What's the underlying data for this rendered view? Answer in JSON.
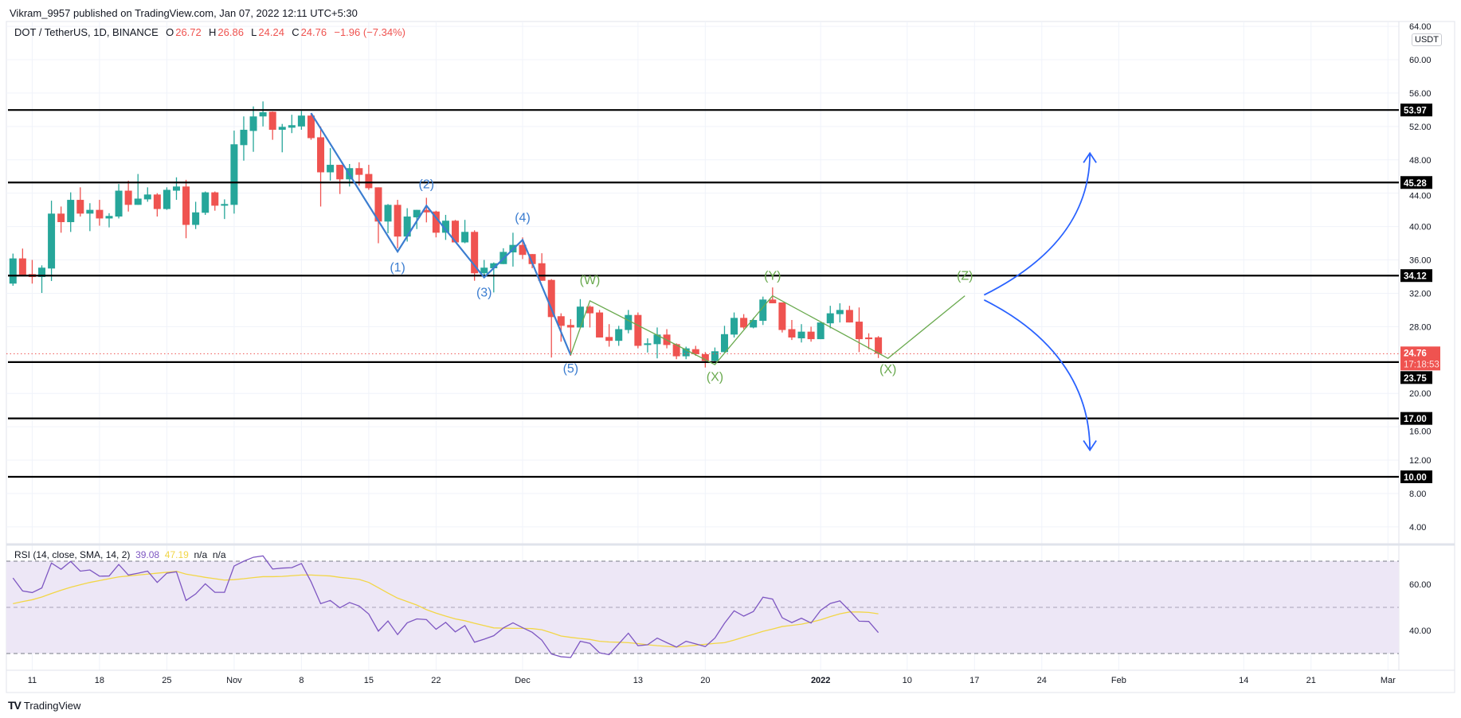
{
  "header": {
    "published": "Vikram_9957 published on TradingView.com, Jan 07, 2022 12:11 UTC+5:30"
  },
  "legend": {
    "symbol": "DOT / TetherUS, 1D, BINANCE",
    "open_label": "O",
    "open": "26.72",
    "high_label": "H",
    "high": "26.86",
    "low_label": "L",
    "low": "24.24",
    "close_label": "C",
    "close": "24.76",
    "change": "−1.96 (−7.34%)"
  },
  "currency_badge": "USDT",
  "rsi_legend": {
    "label": "RSI (14, close, SMA, 14, 2)",
    "rsi": "39.08",
    "sma": "47.19",
    "na1": "n/a",
    "na2": "n/a"
  },
  "logo": {
    "text": "TradingView",
    "mark": "TV"
  },
  "colors": {
    "up": "#26a69a",
    "down": "#ef5350",
    "rsi": "#7e57c2",
    "rsi_sma": "#f2d646",
    "wave_blue": "#3b7dd0",
    "wave_green": "#6aaa4f",
    "level": "#000000",
    "last_price": "#ef5350",
    "rsi_band": "#ede7f6"
  },
  "chart_data": {
    "type": "candlestick",
    "price_axis": {
      "range": [
        2,
        66
      ],
      "ticks": [
        "64.00",
        "60.00",
        "56.00",
        "52.00",
        "48.00",
        "44.00",
        "40.00",
        "36.00",
        "32.00",
        "28.00",
        "20.00",
        "16.00",
        "12.00",
        "8.00",
        "4.00"
      ],
      "tick_values": [
        64,
        60,
        56,
        52,
        48,
        44,
        40,
        36,
        32,
        28,
        20,
        16,
        12,
        8,
        4
      ]
    },
    "time_axis": {
      "ticks": [
        {
          "label": "11",
          "date": "2021-10-11"
        },
        {
          "label": "18",
          "date": "2021-10-18"
        },
        {
          "label": "25",
          "date": "2021-10-25"
        },
        {
          "label": "Nov",
          "date": "2021-11-01",
          "bold": true
        },
        {
          "label": "8",
          "date": "2021-11-08"
        },
        {
          "label": "15",
          "date": "2021-11-15"
        },
        {
          "label": "22",
          "date": "2021-11-22"
        },
        {
          "label": "Dec",
          "date": "2021-12-01",
          "bold": true
        },
        {
          "label": "13",
          "date": "2021-12-13"
        },
        {
          "label": "20",
          "date": "2021-12-20"
        },
        {
          "label": "2022",
          "date": "2022-01-01",
          "bold": true
        },
        {
          "label": "10",
          "date": "2022-01-10"
        },
        {
          "label": "17",
          "date": "2022-01-17"
        },
        {
          "label": "24",
          "date": "2022-01-24"
        },
        {
          "label": "Feb",
          "date": "2022-02-01",
          "bold": true
        },
        {
          "label": "14",
          "date": "2022-02-14"
        },
        {
          "label": "21",
          "date": "2022-02-21"
        },
        {
          "label": "Mar",
          "date": "2022-03-01",
          "bold": true
        }
      ]
    },
    "candles_format": [
      "date",
      "open",
      "high",
      "low",
      "close"
    ],
    "candles": [
      [
        "2021-10-09",
        33.16,
        36.76,
        32.9,
        36.18
      ],
      [
        "2021-10-10",
        36.18,
        37.36,
        34.08,
        34.21
      ],
      [
        "2021-10-11",
        34.3,
        36.0,
        33.16,
        33.95
      ],
      [
        "2021-10-12",
        33.95,
        35.35,
        32.04,
        35.07
      ],
      [
        "2021-10-13",
        34.97,
        43.1,
        33.47,
        41.55
      ],
      [
        "2021-10-14",
        41.55,
        42.4,
        39.26,
        40.53
      ],
      [
        "2021-10-15",
        40.53,
        44.1,
        39.35,
        43.2
      ],
      [
        "2021-10-16",
        43.2,
        44.7,
        41.2,
        41.55
      ],
      [
        "2021-10-17",
        41.55,
        42.8,
        39.45,
        42.0
      ],
      [
        "2021-10-18",
        42.0,
        43.2,
        40.1,
        40.97
      ],
      [
        "2021-10-19",
        40.97,
        41.6,
        39.9,
        41.27
      ],
      [
        "2021-10-20",
        41.2,
        45.1,
        40.97,
        44.3
      ],
      [
        "2021-10-21",
        44.3,
        45.5,
        41.8,
        42.6
      ],
      [
        "2021-10-22",
        42.6,
        46.3,
        42.6,
        43.35
      ],
      [
        "2021-10-23",
        43.26,
        44.7,
        42.97,
        43.84
      ],
      [
        "2021-10-24",
        43.84,
        44.0,
        41.2,
        42.1
      ],
      [
        "2021-10-25",
        42.1,
        44.7,
        42.0,
        44.4
      ],
      [
        "2021-10-26",
        44.3,
        45.9,
        43.2,
        44.8
      ],
      [
        "2021-10-27",
        44.8,
        45.6,
        38.6,
        40.2
      ],
      [
        "2021-10-28",
        40.2,
        42.97,
        39.7,
        41.7
      ],
      [
        "2021-10-29",
        41.65,
        44.2,
        41.4,
        44.1
      ],
      [
        "2021-10-30",
        44.1,
        44.2,
        41.9,
        42.5
      ],
      [
        "2021-10-31",
        42.5,
        43.26,
        40.9,
        42.7
      ],
      [
        "2021-11-01",
        42.6,
        51.5,
        41.55,
        49.86
      ],
      [
        "2021-11-02",
        49.76,
        53.2,
        47.9,
        51.6
      ],
      [
        "2021-11-03",
        51.46,
        54.4,
        48.96,
        53.2
      ],
      [
        "2021-11-04",
        53.2,
        55.0,
        52.0,
        53.7
      ],
      [
        "2021-11-05",
        53.76,
        53.8,
        50.4,
        51.6
      ],
      [
        "2021-11-06",
        51.6,
        52.3,
        48.9,
        51.95
      ],
      [
        "2021-11-07",
        51.85,
        53.4,
        51.2,
        52.15
      ],
      [
        "2021-11-08",
        52.0,
        53.85,
        51.6,
        53.3
      ],
      [
        "2021-11-09",
        53.3,
        53.5,
        50.4,
        50.6
      ],
      [
        "2021-11-10",
        50.7,
        52.0,
        42.4,
        46.5
      ],
      [
        "2021-11-11",
        46.5,
        49.4,
        45.5,
        47.4
      ],
      [
        "2021-11-12",
        47.4,
        47.4,
        43.9,
        45.66
      ],
      [
        "2021-11-13",
        45.66,
        47.5,
        44.8,
        47.0
      ],
      [
        "2021-11-14",
        47.0,
        47.7,
        44.9,
        46.2
      ],
      [
        "2021-11-15",
        46.3,
        47.4,
        44.4,
        44.6
      ],
      [
        "2021-11-16",
        44.7,
        44.7,
        38.0,
        40.6
      ],
      [
        "2021-11-17",
        40.6,
        42.7,
        39.2,
        42.6
      ],
      [
        "2021-11-18",
        42.6,
        43.2,
        37.4,
        38.8
      ],
      [
        "2021-11-19",
        38.8,
        42.2,
        38.2,
        41.2
      ],
      [
        "2021-11-20",
        41.1,
        42.0,
        39.7,
        42.0
      ],
      [
        "2021-11-21",
        42.0,
        43.45,
        40.5,
        41.7
      ],
      [
        "2021-11-22",
        41.8,
        41.9,
        38.7,
        39.26
      ],
      [
        "2021-11-23",
        39.26,
        41.4,
        38.4,
        40.7
      ],
      [
        "2021-11-24",
        40.7,
        40.8,
        38.1,
        38.1
      ],
      [
        "2021-11-25",
        38.1,
        40.8,
        38.0,
        39.36
      ],
      [
        "2021-11-26",
        39.36,
        39.55,
        33.5,
        34.4
      ],
      [
        "2021-11-27",
        34.4,
        36.0,
        34.0,
        35.07
      ],
      [
        "2021-11-28",
        35.0,
        35.7,
        32.1,
        35.6
      ],
      [
        "2021-11-29",
        35.5,
        37.4,
        35.5,
        36.96
      ],
      [
        "2021-11-30",
        36.9,
        39.26,
        35.2,
        37.8
      ],
      [
        "2021-12-01",
        37.8,
        38.7,
        36.1,
        36.6
      ],
      [
        "2021-12-02",
        36.7,
        36.7,
        35.0,
        35.5
      ],
      [
        "2021-12-03",
        35.6,
        36.8,
        33.5,
        33.5
      ],
      [
        "2021-12-04",
        33.6,
        33.7,
        24.3,
        29.15
      ],
      [
        "2021-12-05",
        29.25,
        29.6,
        26.2,
        28.1
      ],
      [
        "2021-12-06",
        28.2,
        28.9,
        24.5,
        27.9
      ],
      [
        "2021-12-07",
        27.9,
        31.3,
        27.9,
        30.4
      ],
      [
        "2021-12-08",
        30.4,
        30.55,
        27.9,
        29.6
      ],
      [
        "2021-12-09",
        29.7,
        30.0,
        26.7,
        26.7
      ],
      [
        "2021-12-10",
        26.76,
        28.3,
        25.6,
        26.3
      ],
      [
        "2021-12-11",
        26.3,
        28.1,
        25.7,
        27.7
      ],
      [
        "2021-12-12",
        27.6,
        30.0,
        27.2,
        29.4
      ],
      [
        "2021-12-13",
        29.4,
        29.7,
        25.4,
        25.7
      ],
      [
        "2021-12-14",
        25.8,
        26.6,
        24.9,
        26.0
      ],
      [
        "2021-12-15",
        25.9,
        27.9,
        24.2,
        27.05
      ],
      [
        "2021-12-16",
        27.05,
        27.7,
        25.4,
        25.8
      ],
      [
        "2021-12-17",
        25.9,
        26.0,
        24.1,
        24.45
      ],
      [
        "2021-12-18",
        24.45,
        25.6,
        24.1,
        25.4
      ],
      [
        "2021-12-19",
        25.3,
        25.7,
        24.5,
        24.7
      ],
      [
        "2021-12-20",
        24.7,
        24.95,
        23.1,
        23.9
      ],
      [
        "2021-12-21",
        23.9,
        25.5,
        23.6,
        25.05
      ],
      [
        "2021-12-22",
        24.95,
        28.1,
        24.9,
        27.1
      ],
      [
        "2021-12-23",
        27.05,
        29.7,
        26.7,
        29.05
      ],
      [
        "2021-12-24",
        29.05,
        29.5,
        27.7,
        27.9
      ],
      [
        "2021-12-25",
        27.9,
        29.05,
        27.8,
        28.8
      ],
      [
        "2021-12-26",
        28.7,
        31.6,
        28.2,
        31.25
      ],
      [
        "2021-12-27",
        31.25,
        32.7,
        30.8,
        30.8
      ],
      [
        "2021-12-28",
        30.9,
        30.9,
        27.3,
        27.6
      ],
      [
        "2021-12-29",
        27.7,
        28.8,
        26.4,
        26.7
      ],
      [
        "2021-12-30",
        26.6,
        28.3,
        26.1,
        27.4
      ],
      [
        "2021-12-31",
        27.4,
        28.0,
        26.2,
        26.5
      ],
      [
        "2022-01-01",
        26.5,
        28.5,
        26.5,
        28.5
      ],
      [
        "2022-01-02",
        28.4,
        30.5,
        27.8,
        29.6
      ],
      [
        "2022-01-03",
        29.5,
        30.8,
        28.5,
        30.0
      ],
      [
        "2022-01-04",
        30.0,
        30.5,
        28.5,
        28.5
      ],
      [
        "2022-01-05",
        28.6,
        30.3,
        24.95,
        26.5
      ],
      [
        "2022-01-06",
        26.7,
        27.2,
        25.3,
        26.5
      ],
      [
        "2022-01-07",
        26.72,
        26.86,
        24.24,
        24.76
      ]
    ],
    "last_price": {
      "value": 24.76,
      "label": "24.76",
      "countdown": "17:18:53"
    },
    "levels": [
      {
        "value": 53.97,
        "label": "53.97"
      },
      {
        "value": 45.28,
        "label": "45.28"
      },
      {
        "value": 34.12,
        "label": "34.12"
      },
      {
        "value": 23.75,
        "label": "23.75"
      },
      {
        "value": 17.0,
        "label": "17.00"
      },
      {
        "value": 10.0,
        "label": "10.00"
      }
    ],
    "wave_impulse": {
      "points": [
        [
          "2021-11-09",
          53.6
        ],
        [
          "2021-11-18",
          37.0
        ],
        [
          "2021-11-21",
          42.5
        ],
        [
          "2021-11-27",
          33.9
        ],
        [
          "2021-12-01",
          38.4
        ],
        [
          "2021-12-06",
          24.6
        ]
      ],
      "labels": [
        {
          "text": "(1)",
          "date": "2021-11-18",
          "price": 34.6
        },
        {
          "text": "(2)",
          "date": "2021-11-21",
          "price": 44.6
        },
        {
          "text": "(3)",
          "date": "2021-11-27",
          "price": 31.6
        },
        {
          "text": "(4)",
          "date": "2021-12-01",
          "price": 40.6
        },
        {
          "text": "(5)",
          "date": "2021-12-06",
          "price": 22.5
        }
      ]
    },
    "wave_correction": {
      "points": [
        [
          "2021-12-06",
          24.6
        ],
        [
          "2021-12-08",
          31.1
        ],
        [
          "2021-12-21",
          23.45
        ],
        [
          "2021-12-27",
          31.7
        ],
        [
          "2022-01-08",
          24.2
        ],
        [
          "2022-01-16",
          31.7
        ]
      ],
      "labels": [
        {
          "text": "(W)",
          "date": "2021-12-08",
          "price": 33.1
        },
        {
          "text": "(X)",
          "date": "2021-12-21",
          "price": 21.5
        },
        {
          "text": "(Y)",
          "date": "2021-12-27",
          "price": 33.6
        },
        {
          "text": "(X)",
          "date": "2022-01-08",
          "price": 22.4
        },
        {
          "text": "(Z)",
          "date": "2022-01-16",
          "price": 33.6
        }
      ]
    },
    "scenario_arrows": [
      {
        "direction": "up",
        "from": [
          "2022-01-18",
          31.8
        ],
        "to": [
          "2022-01-29",
          48.8
        ]
      },
      {
        "direction": "down",
        "from": [
          "2022-01-18",
          31.2
        ],
        "to": [
          "2022-01-29",
          13.2
        ]
      }
    ],
    "rsi": {
      "range": [
        25,
        75
      ],
      "bands": [
        70,
        50,
        30
      ],
      "ticks": [
        "60.00",
        "40.00"
      ],
      "tick_values": [
        60,
        40
      ],
      "values": [
        62.7,
        57.1,
        56.4,
        58.4,
        69.2,
        66.5,
        69.9,
        65.7,
        66.2,
        63.5,
        63.6,
        68.6,
        64.0,
        64.8,
        65.7,
        60.8,
        64.8,
        65.4,
        53.0,
        55.8,
        60.2,
        56.5,
        56.5,
        67.9,
        70.0,
        71.7,
        72.3,
        66.6,
        67.0,
        67.2,
        69.0,
        61.1,
        51.6,
        53.0,
        49.8,
        52.1,
        50.6,
        47.1,
        39.7,
        44.1,
        38.2,
        43.3,
        45.0,
        44.7,
        40.5,
        43.5,
        39.4,
        42.1,
        34.9,
        36.2,
        37.7,
        41.1,
        43.3,
        41.2,
        39.2,
        35.8,
        29.8,
        28.6,
        28.3,
        35.3,
        34.4,
        30.3,
        29.5,
        34.2,
        38.8,
        33.4,
        33.8,
        36.7,
        34.7,
        32.8,
        35.3,
        34.2,
        33.0,
        36.7,
        43.1,
        48.5,
        46.2,
        48.2,
        54.4,
        53.6,
        45.5,
        43.4,
        45.3,
        43.2,
        48.7,
        51.7,
        52.8,
        48.6,
        44.0,
        43.9,
        39.08
      ],
      "sma": [
        51.6,
        52.5,
        53.3,
        54.5,
        56.0,
        57.4,
        58.7,
        59.8,
        60.8,
        61.6,
        62.4,
        63.2,
        63.6,
        64.0,
        64.4,
        64.8,
        65.2,
        65.6,
        64.4,
        63.7,
        63.0,
        62.4,
        61.8,
        62.0,
        62.4,
        62.9,
        63.3,
        63.3,
        63.4,
        63.7,
        64.0,
        64.0,
        63.8,
        63.6,
        63.0,
        62.6,
        62.1,
        60.8,
        58.5,
        56.2,
        54.0,
        52.5,
        51.0,
        49.0,
        47.5,
        46.2,
        45.0,
        44.2,
        43.1,
        42.1,
        41.1,
        41.0,
        40.9,
        40.9,
        40.8,
        40.3,
        39.0,
        37.6,
        37.0,
        36.5,
        36.1,
        35.3,
        35.0,
        34.9,
        34.7,
        34.3,
        33.8,
        33.4,
        33.1,
        32.8,
        33.2,
        33.6,
        34.0,
        34.4,
        34.7,
        35.8,
        37.1,
        38.3,
        39.6,
        40.6,
        41.7,
        42.2,
        42.7,
        43.6,
        44.6,
        46.0,
        47.2,
        48.0,
        48.0,
        47.8,
        47.19
      ]
    }
  }
}
